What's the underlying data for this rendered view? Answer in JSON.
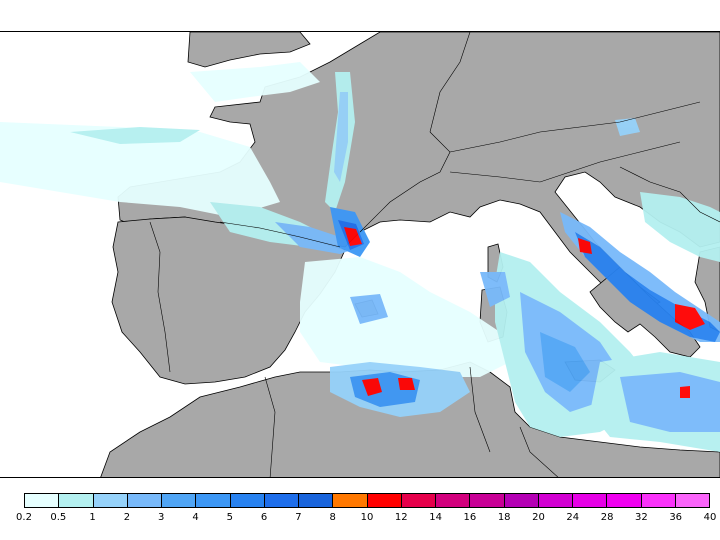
{
  "legend": {
    "labels": [
      "0.2",
      "0.5",
      "1",
      "2",
      "3",
      "4",
      "5",
      "6",
      "7",
      "8",
      "10",
      "12",
      "14",
      "16",
      "18",
      "20",
      "24",
      "28",
      "32",
      "36",
      "40"
    ],
    "colors": [
      "#e6ffff",
      "#b4f0f0",
      "#96d2fa",
      "#78b9fa",
      "#50a5f5",
      "#3c97f5",
      "#2882f0",
      "#1e6eeb",
      "#1964dc",
      "#ff7800",
      "#ff0000",
      "#e6004b",
      "#d2007d",
      "#c80096",
      "#b400b4",
      "#d200d2",
      "#e600e6",
      "#f000f0",
      "#fa32fa",
      "#fa64fa"
    ]
  },
  "map": {
    "land_color": "#a8a8a8",
    "sea_color": "#ffffff",
    "border_color": "#000000"
  }
}
